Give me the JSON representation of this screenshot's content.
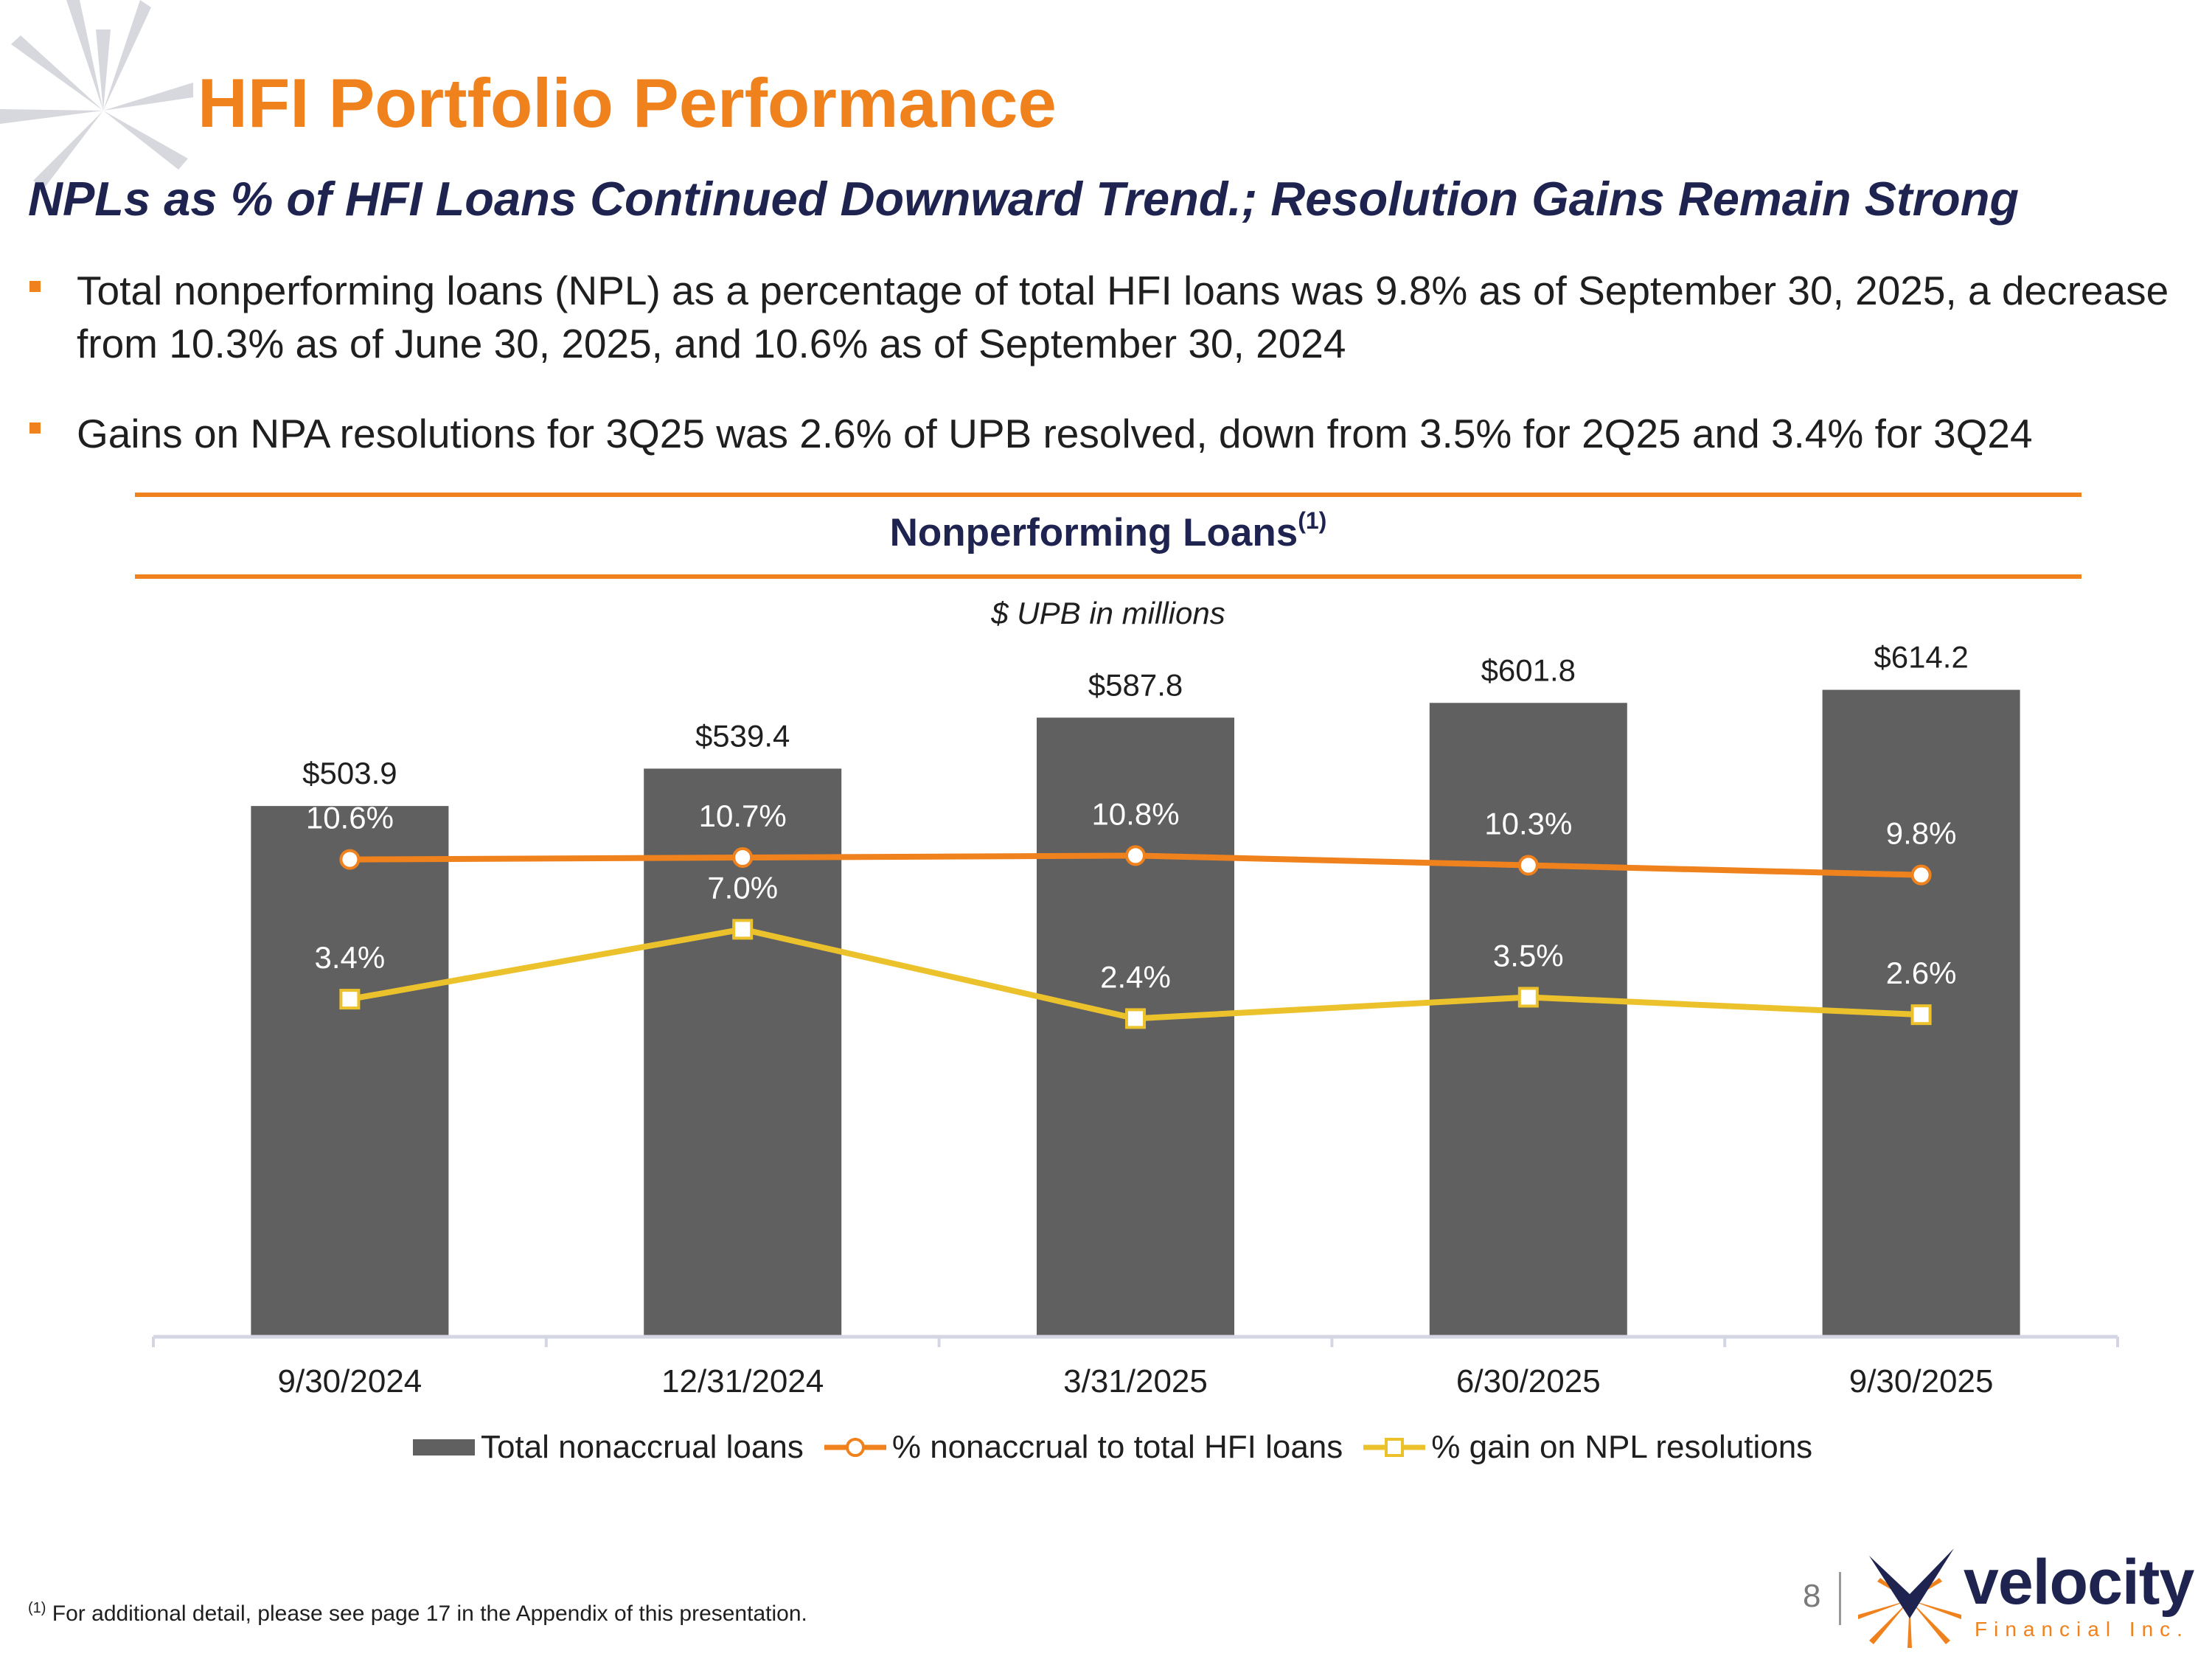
{
  "header": {
    "title": "HFI Portfolio Performance",
    "subtitle": "NPLs as % of HFI Loans Continued Downward Trend.; Resolution Gains Remain Strong"
  },
  "bullets": [
    "Total nonperforming loans (NPL) as a percentage of total HFI loans was 9.8% as of September 30, 2025, a decrease from 10.3% as of June 30, 2025, and 10.6% as of September 30, 2024",
    "Gains on NPA resolutions for 3Q25 was 2.6% of UPB resolved, down from 3.5% for 2Q25 and 3.4% for 3Q24"
  ],
  "chart_data": {
    "type": "bar",
    "title": "Nonperforming Loans",
    "title_superscript": "(1)",
    "subtitle": "$ UPB in millions",
    "categories": [
      "9/30/2024",
      "12/31/2024",
      "3/31/2025",
      "6/30/2025",
      "9/30/2025"
    ],
    "series": [
      {
        "name": "Total nonaccrual loans",
        "kind": "bar",
        "values": [
          503.9,
          539.4,
          587.8,
          601.8,
          614.2
        ],
        "labels": [
          "$503.9",
          "$539.4",
          "$587.8",
          "$601.8",
          "$614.2"
        ],
        "color": "#606060"
      },
      {
        "name": "% nonaccrual to total HFI loans",
        "kind": "line",
        "marker": "circle",
        "values": [
          10.6,
          10.7,
          10.8,
          10.3,
          9.8
        ],
        "labels": [
          "10.6%",
          "10.7%",
          "10.8%",
          "10.3%",
          "9.8%"
        ],
        "color": "#f0821e"
      },
      {
        "name": "% gain on NPL resolutions",
        "kind": "line",
        "marker": "square",
        "values": [
          3.4,
          7.0,
          2.4,
          3.5,
          2.6
        ],
        "labels": [
          "3.4%",
          "7.0%",
          "2.4%",
          "3.5%",
          "2.6%"
        ],
        "color": "#ecc22c"
      }
    ],
    "ylim": [
      0,
      700
    ],
    "ylim_pct": [
      -14,
      24
    ],
    "grid": false,
    "legend": "bottom"
  },
  "footnote": {
    "marker": "(1)",
    "text": "For additional detail, please see page 17 in the Appendix of this presentation."
  },
  "footer": {
    "page_number": "8",
    "logo_word": "velocity",
    "logo_sub": "Financial Inc."
  },
  "colors": {
    "accent": "#f0821e",
    "navy": "#1e2350",
    "bar": "#606060",
    "gain_line": "#ecc22c"
  }
}
